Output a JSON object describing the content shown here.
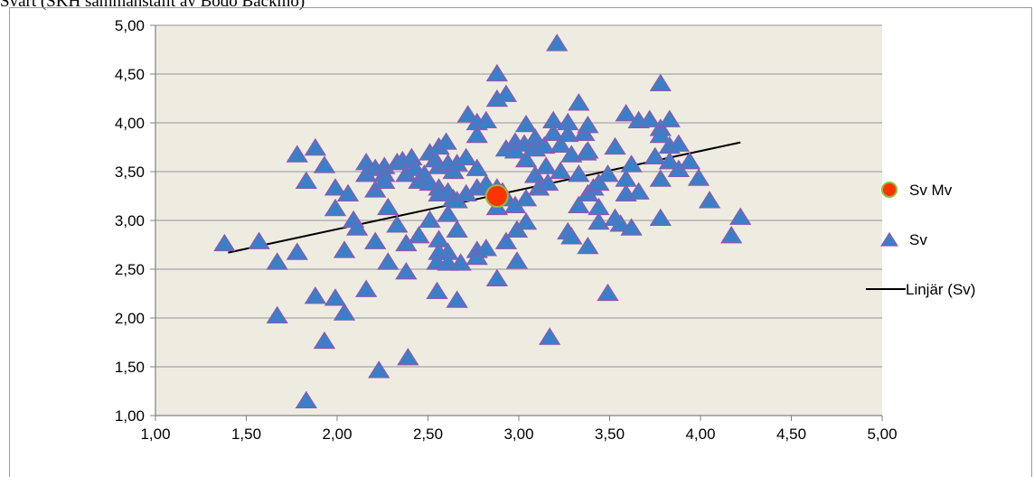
{
  "caption": "Svart (SKH sammanställt av Bodo Bäckmo)",
  "chart_data": {
    "type": "scatter",
    "xlim": [
      1.0,
      5.0
    ],
    "ylim": [
      1.0,
      5.0
    ],
    "x_ticks": [
      "1,00",
      "1,50",
      "2,00",
      "2,50",
      "3,00",
      "3,50",
      "4,00",
      "4,50",
      "5,00"
    ],
    "y_ticks": [
      "1,00",
      "1,50",
      "2,00",
      "2,50",
      "3,00",
      "3,50",
      "4,00",
      "4,50",
      "5,00"
    ],
    "plot_background": "#eeece1",
    "grid_color": "#a6a6a6",
    "legend_position": "right",
    "series": [
      {
        "name": "Sv Mv",
        "marker": "circle",
        "fill": "#ff3300",
        "stroke": "#8fbc3a",
        "points": [
          [
            2.88,
            3.25
          ]
        ]
      },
      {
        "name": "Sv",
        "marker": "triangle",
        "fill": "#3a80c8",
        "stroke": "#8a5bb0",
        "points": [
          [
            1.38,
            2.76
          ],
          [
            1.57,
            2.78
          ],
          [
            1.67,
            2.57
          ],
          [
            1.67,
            2.02
          ],
          [
            1.78,
            3.67
          ],
          [
            1.78,
            2.67
          ],
          [
            1.83,
            1.15
          ],
          [
            1.83,
            3.4
          ],
          [
            1.88,
            3.74
          ],
          [
            1.88,
            2.22
          ],
          [
            1.93,
            3.56
          ],
          [
            1.93,
            1.76
          ],
          [
            1.99,
            3.33
          ],
          [
            1.99,
            3.12
          ],
          [
            1.99,
            2.2
          ],
          [
            2.04,
            2.69
          ],
          [
            2.04,
            2.05
          ],
          [
            2.06,
            3.27
          ],
          [
            2.09,
            3.0
          ],
          [
            2.11,
            2.92
          ],
          [
            2.16,
            3.59
          ],
          [
            2.16,
            3.47
          ],
          [
            2.16,
            2.29
          ],
          [
            2.21,
            3.53
          ],
          [
            2.21,
            3.31
          ],
          [
            2.21,
            2.78
          ],
          [
            2.23,
            1.46
          ],
          [
            2.26,
            3.55
          ],
          [
            2.26,
            3.47
          ],
          [
            2.26,
            3.4
          ],
          [
            2.28,
            3.13
          ],
          [
            2.28,
            2.57
          ],
          [
            2.33,
            3.59
          ],
          [
            2.33,
            2.95
          ],
          [
            2.36,
            3.61
          ],
          [
            2.38,
            3.47
          ],
          [
            2.38,
            2.76
          ],
          [
            2.38,
            2.47
          ],
          [
            2.39,
            1.59
          ],
          [
            2.41,
            3.64
          ],
          [
            2.43,
            3.53
          ],
          [
            2.45,
            3.4
          ],
          [
            2.45,
            2.84
          ],
          [
            2.48,
            3.47
          ],
          [
            2.51,
            3.69
          ],
          [
            2.51,
            3.38
          ],
          [
            2.51,
            3.0
          ],
          [
            2.54,
            3.62
          ],
          [
            2.55,
            2.57
          ],
          [
            2.55,
            2.27
          ],
          [
            2.56,
            3.75
          ],
          [
            2.56,
            3.55
          ],
          [
            2.56,
            3.33
          ],
          [
            2.56,
            3.27
          ],
          [
            2.56,
            2.8
          ],
          [
            2.56,
            2.67
          ],
          [
            2.6,
            3.8
          ],
          [
            2.61,
            3.58
          ],
          [
            2.61,
            3.29
          ],
          [
            2.61,
            3.06
          ],
          [
            2.61,
            2.67
          ],
          [
            2.61,
            2.56
          ],
          [
            2.64,
            3.5
          ],
          [
            2.64,
            3.22
          ],
          [
            2.66,
            3.58
          ],
          [
            2.66,
            3.2
          ],
          [
            2.66,
            2.9
          ],
          [
            2.66,
            2.18
          ],
          [
            2.68,
            2.56
          ],
          [
            2.71,
            3.64
          ],
          [
            2.71,
            3.27
          ],
          [
            2.72,
            4.08
          ],
          [
            2.77,
            4.0
          ],
          [
            2.77,
            3.87
          ],
          [
            2.77,
            3.53
          ],
          [
            2.77,
            3.33
          ],
          [
            2.77,
            2.69
          ],
          [
            2.77,
            2.62
          ],
          [
            2.82,
            4.02
          ],
          [
            2.82,
            3.37
          ],
          [
            2.82,
            2.71
          ],
          [
            2.88,
            4.5
          ],
          [
            2.88,
            4.24
          ],
          [
            2.88,
            3.33
          ],
          [
            2.88,
            3.13
          ],
          [
            2.88,
            2.4
          ],
          [
            2.91,
            3.29
          ],
          [
            2.93,
            4.29
          ],
          [
            2.93,
            3.73
          ],
          [
            2.93,
            3.22
          ],
          [
            2.93,
            2.78
          ],
          [
            2.98,
            3.8
          ],
          [
            2.98,
            3.71
          ],
          [
            2.98,
            3.15
          ],
          [
            2.99,
            2.9
          ],
          [
            2.99,
            2.58
          ],
          [
            3.03,
            3.78
          ],
          [
            3.04,
            3.98
          ],
          [
            3.04,
            3.62
          ],
          [
            3.04,
            3.22
          ],
          [
            3.04,
            2.98
          ],
          [
            3.09,
            3.84
          ],
          [
            3.09,
            3.73
          ],
          [
            3.09,
            3.46
          ],
          [
            3.11,
            3.33
          ],
          [
            3.14,
            3.76
          ],
          [
            3.15,
            3.55
          ],
          [
            3.16,
            3.38
          ],
          [
            3.17,
            1.8
          ],
          [
            3.19,
            4.02
          ],
          [
            3.19,
            3.89
          ],
          [
            3.21,
            4.81
          ],
          [
            3.23,
            3.77
          ],
          [
            3.23,
            3.5
          ],
          [
            3.27,
            4.0
          ],
          [
            3.27,
            3.88
          ],
          [
            3.27,
            2.88
          ],
          [
            3.29,
            3.67
          ],
          [
            3.29,
            2.83
          ],
          [
            3.33,
            4.2
          ],
          [
            3.33,
            3.47
          ],
          [
            3.33,
            3.15
          ],
          [
            3.36,
            3.89
          ],
          [
            3.37,
            3.69
          ],
          [
            3.38,
            3.97
          ],
          [
            3.38,
            3.71
          ],
          [
            3.38,
            3.27
          ],
          [
            3.38,
            2.73
          ],
          [
            3.41,
            3.33
          ],
          [
            3.44,
            3.38
          ],
          [
            3.44,
            3.13
          ],
          [
            3.44,
            2.98
          ],
          [
            3.49,
            3.47
          ],
          [
            3.49,
            2.25
          ],
          [
            3.53,
            3.75
          ],
          [
            3.53,
            3.02
          ],
          [
            3.56,
            2.96
          ],
          [
            3.59,
            4.09
          ],
          [
            3.59,
            3.42
          ],
          [
            3.59,
            3.27
          ],
          [
            3.62,
            3.57
          ],
          [
            3.62,
            2.92
          ],
          [
            3.66,
            4.02
          ],
          [
            3.66,
            3.29
          ],
          [
            3.72,
            4.03
          ],
          [
            3.75,
            3.65
          ],
          [
            3.78,
            4.4
          ],
          [
            3.78,
            3.94
          ],
          [
            3.78,
            3.87
          ],
          [
            3.78,
            3.42
          ],
          [
            3.78,
            3.02
          ],
          [
            3.83,
            4.03
          ],
          [
            3.83,
            3.76
          ],
          [
            3.83,
            3.6
          ],
          [
            3.88,
            3.78
          ],
          [
            3.88,
            3.52
          ],
          [
            3.94,
            3.6
          ],
          [
            3.99,
            3.43
          ],
          [
            4.05,
            3.2
          ],
          [
            4.17,
            2.84
          ],
          [
            4.22,
            3.03
          ]
        ]
      },
      {
        "name": "Linjär (Sv)",
        "marker": "line",
        "stroke": "#000000",
        "points": [
          [
            1.4,
            2.67
          ],
          [
            4.22,
            3.8
          ]
        ]
      }
    ]
  }
}
